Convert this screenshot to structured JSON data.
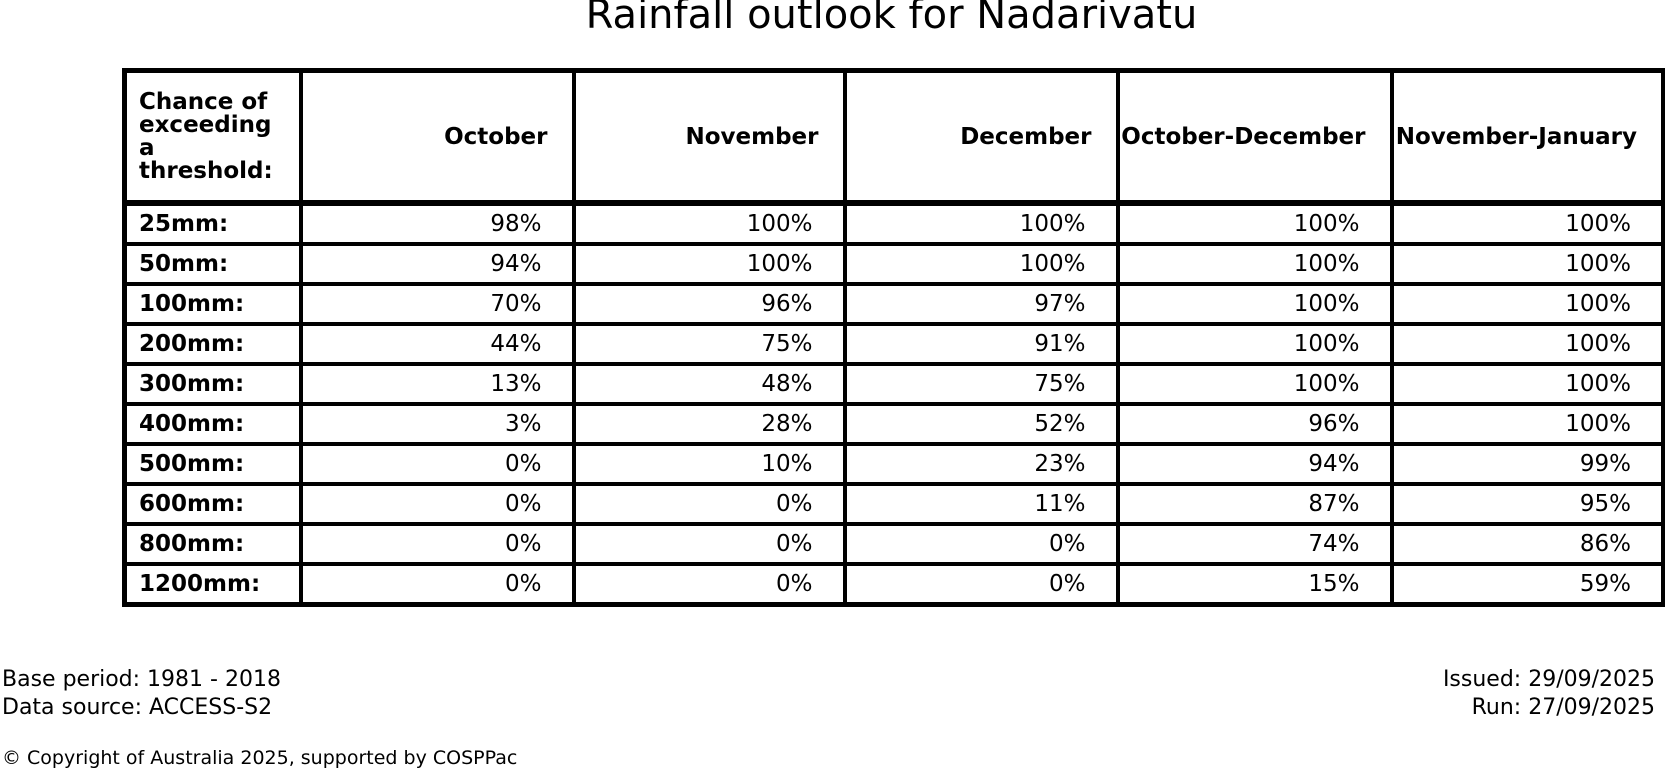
{
  "chart_data": {
    "type": "table",
    "title": "Rainfall outlook for Nadarivatu",
    "corner_header": "Chance of\nexceeding\na threshold:",
    "columns": [
      "October",
      "November",
      "December",
      "October-December",
      "November-January"
    ],
    "rows": [
      {
        "threshold": "25mm:",
        "values": [
          98,
          100,
          100,
          100,
          100
        ]
      },
      {
        "threshold": "50mm:",
        "values": [
          94,
          100,
          100,
          100,
          100
        ]
      },
      {
        "threshold": "100mm:",
        "values": [
          70,
          96,
          97,
          100,
          100
        ]
      },
      {
        "threshold": "200mm:",
        "values": [
          44,
          75,
          91,
          100,
          100
        ]
      },
      {
        "threshold": "300mm:",
        "values": [
          13,
          48,
          75,
          100,
          100
        ]
      },
      {
        "threshold": "400mm:",
        "values": [
          3,
          28,
          52,
          96,
          100
        ]
      },
      {
        "threshold": "500mm:",
        "values": [
          0,
          10,
          23,
          94,
          99
        ]
      },
      {
        "threshold": "600mm:",
        "values": [
          0,
          0,
          11,
          87,
          95
        ]
      },
      {
        "threshold": "800mm:",
        "values": [
          0,
          0,
          0,
          74,
          86
        ]
      },
      {
        "threshold": "1200mm:",
        "values": [
          0,
          0,
          0,
          15,
          59
        ]
      }
    ],
    "unit": "%",
    "legend_position": "none",
    "grid": true
  },
  "footer": {
    "base_period": "Base period: 1981 - 2018",
    "data_source": "Data source: ACCESS-S2",
    "issued": "Issued: 29/09/2025",
    "run": "Run: 27/09/2025",
    "copyright": "© Copyright of Australia 2025, supported by COSPPac"
  },
  "colors": {
    "text": "#000000",
    "border": "#000000",
    "background": "#ffffff"
  }
}
